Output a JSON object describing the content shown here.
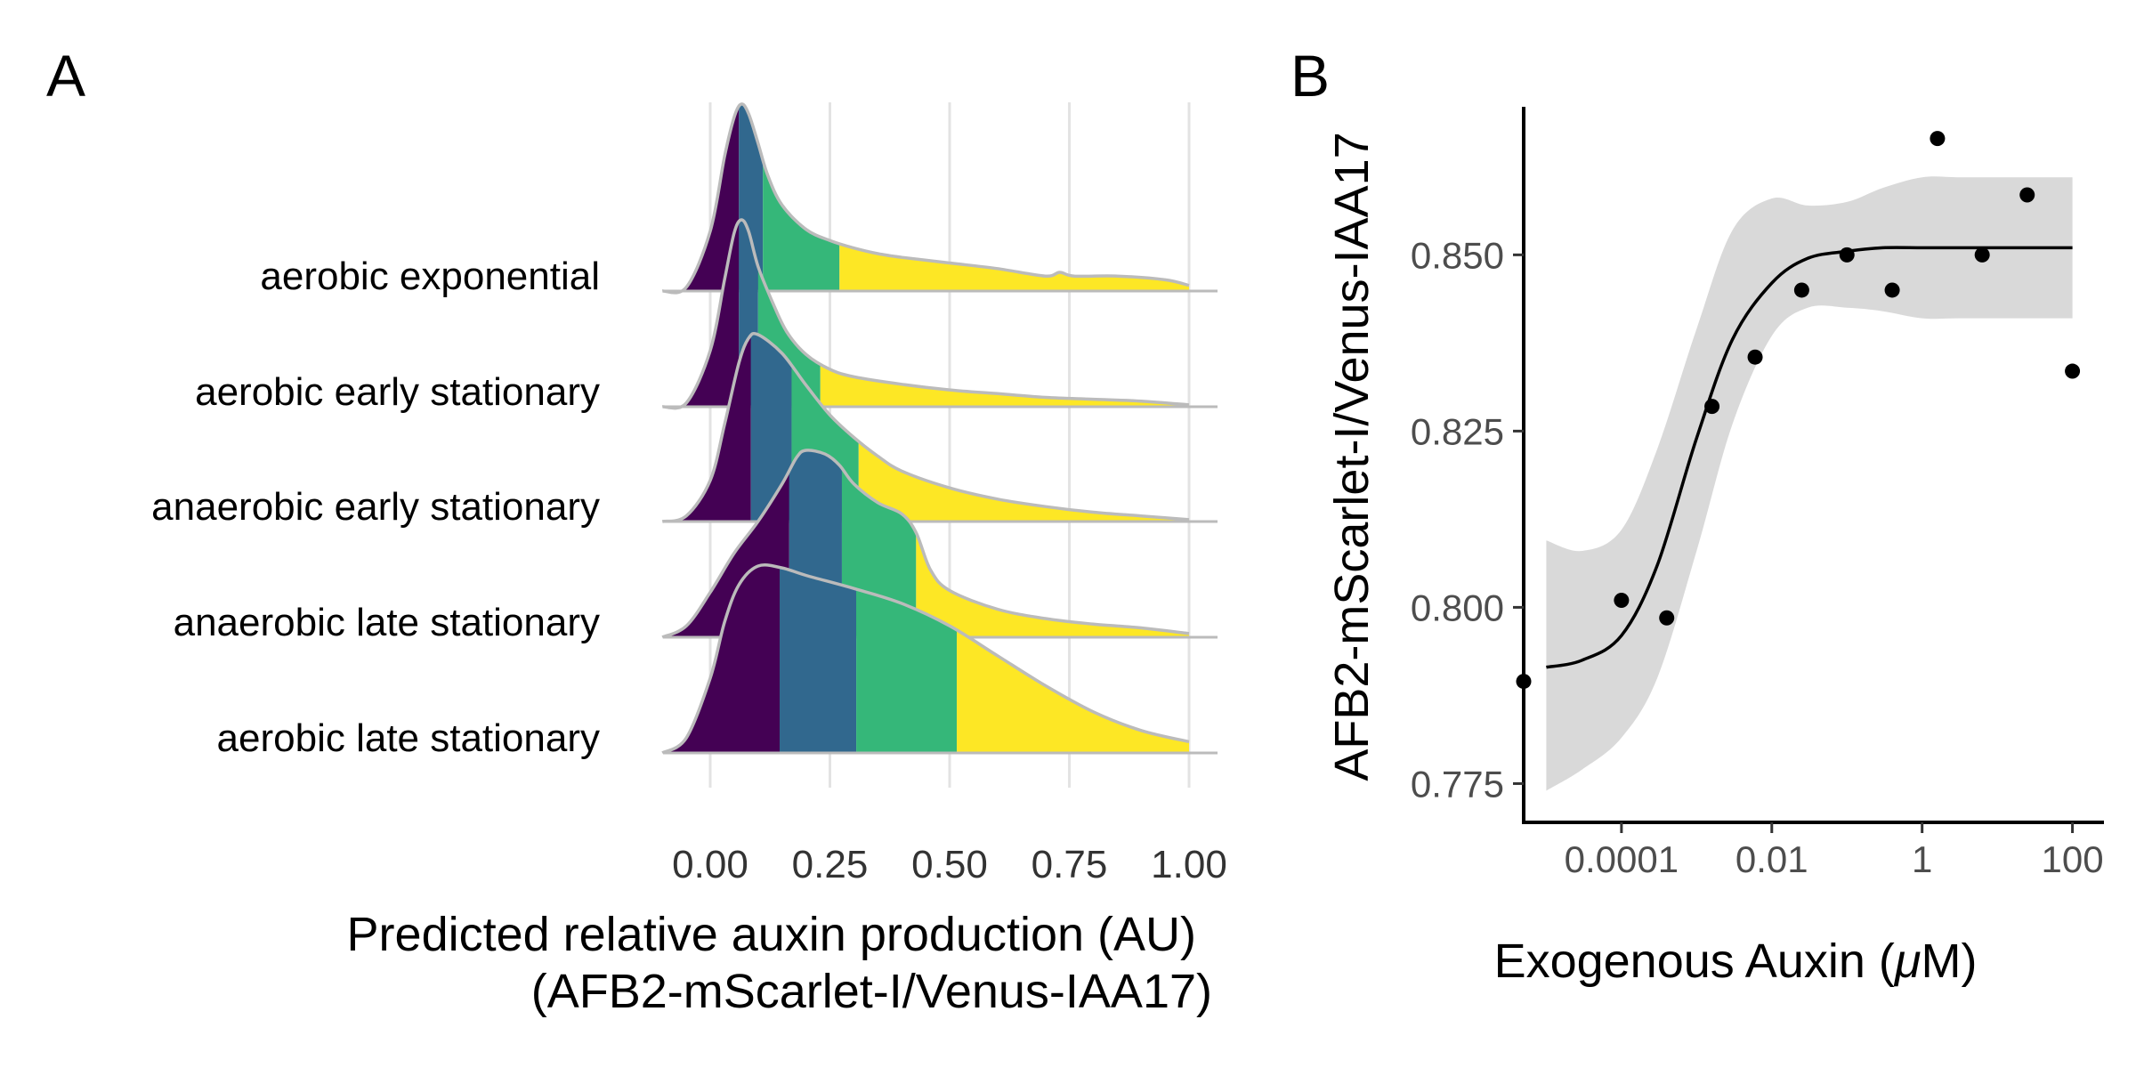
{
  "panels": {
    "a_label": "A",
    "b_label": "B"
  },
  "chart_data": [
    {
      "type": "ridgeline",
      "panel": "A",
      "xlabel_line1": "Predicted relative auxin production (AU)",
      "xlabel_line2": "(AFB2-mScarlet-I/Venus-IAA17)",
      "xlim": [
        -0.1,
        1.05
      ],
      "x_ticks": [
        0.0,
        0.25,
        0.5,
        0.75,
        1.0
      ],
      "x_tick_labels": [
        "0.00",
        "0.25",
        "0.50",
        "0.75",
        "1.00"
      ],
      "grid": "vertical major",
      "quantile_colors": [
        "#440154",
        "#31688E",
        "#35B779",
        "#FDE725"
      ],
      "outline_color": "#BBBBBB",
      "series": [
        {
          "name": "aerobic exponential",
          "quantiles": [
            0.06,
            0.11,
            0.27
          ],
          "density_x": [
            -0.1,
            -0.05,
            0.0,
            0.03,
            0.05,
            0.065,
            0.08,
            0.1,
            0.12,
            0.15,
            0.2,
            0.25,
            0.3,
            0.35,
            0.4,
            0.5,
            0.6,
            0.7,
            0.73,
            0.76,
            0.85,
            0.95,
            1.0
          ],
          "density_y": [
            0.0,
            0.02,
            0.32,
            0.72,
            0.93,
            1.0,
            0.95,
            0.79,
            0.62,
            0.46,
            0.33,
            0.27,
            0.23,
            0.2,
            0.18,
            0.15,
            0.12,
            0.08,
            0.1,
            0.08,
            0.08,
            0.06,
            0.03
          ]
        },
        {
          "name": "aerobic early stationary",
          "quantiles": [
            0.06,
            0.1,
            0.23
          ],
          "density_x": [
            -0.1,
            -0.05,
            0.0,
            0.03,
            0.05,
            0.065,
            0.08,
            0.1,
            0.13,
            0.16,
            0.2,
            0.25,
            0.3,
            0.4,
            0.5,
            0.6,
            0.7,
            0.8,
            0.9,
            1.0
          ],
          "density_y": [
            0.0,
            0.02,
            0.3,
            0.68,
            0.93,
            1.0,
            0.94,
            0.75,
            0.56,
            0.4,
            0.28,
            0.2,
            0.16,
            0.12,
            0.09,
            0.07,
            0.05,
            0.04,
            0.03,
            0.01
          ]
        },
        {
          "name": "anaerobic early stationary",
          "quantiles": [
            0.085,
            0.17,
            0.31
          ],
          "density_x": [
            -0.1,
            -0.05,
            0.0,
            0.03,
            0.06,
            0.08,
            0.1,
            0.15,
            0.2,
            0.25,
            0.3,
            0.35,
            0.4,
            0.5,
            0.6,
            0.7,
            0.8,
            0.9,
            1.0
          ],
          "density_y": [
            0.0,
            0.03,
            0.22,
            0.52,
            0.85,
            0.98,
            1.0,
            0.9,
            0.73,
            0.57,
            0.45,
            0.35,
            0.27,
            0.18,
            0.12,
            0.08,
            0.05,
            0.03,
            0.01
          ]
        },
        {
          "name": "anaerobic late stationary",
          "quantiles": [
            0.165,
            0.275,
            0.43
          ],
          "density_x": [
            -0.1,
            -0.05,
            0.0,
            0.05,
            0.1,
            0.15,
            0.18,
            0.2,
            0.24,
            0.27,
            0.3,
            0.35,
            0.4,
            0.43,
            0.46,
            0.5,
            0.6,
            0.7,
            0.8,
            0.9,
            1.0
          ],
          "density_y": [
            0.0,
            0.06,
            0.24,
            0.45,
            0.62,
            0.82,
            0.96,
            1.0,
            0.98,
            0.92,
            0.82,
            0.72,
            0.66,
            0.56,
            0.36,
            0.25,
            0.15,
            0.1,
            0.07,
            0.05,
            0.02
          ]
        },
        {
          "name": "aerobic late stationary",
          "quantiles": [
            0.145,
            0.305,
            0.515
          ],
          "density_x": [
            -0.1,
            -0.05,
            0.0,
            0.03,
            0.06,
            0.1,
            0.15,
            0.2,
            0.3,
            0.4,
            0.5,
            0.6,
            0.7,
            0.8,
            0.9,
            1.0
          ],
          "density_y": [
            0.0,
            0.08,
            0.4,
            0.7,
            0.9,
            1.0,
            0.99,
            0.95,
            0.88,
            0.8,
            0.68,
            0.52,
            0.36,
            0.22,
            0.12,
            0.06
          ]
        }
      ]
    },
    {
      "type": "scatter",
      "panel": "B",
      "xlabel_prefix": "Exogenous Auxin (",
      "xlabel_mu": "μ",
      "xlabel_suffix": "M)",
      "ylabel": "AFB2-mScarlet-I/Venus-IAA17",
      "x_scale": "log10",
      "xlim": [
        5e-06,
        200
      ],
      "ylim": [
        0.7695,
        0.871
      ],
      "x_ticks": [
        0.0001,
        0.01,
        1,
        100
      ],
      "x_tick_labels": [
        "0.0001",
        "0.01",
        "1",
        "100"
      ],
      "y_ticks": [
        0.775,
        0.8,
        0.825,
        0.85
      ],
      "y_tick_labels": [
        "0.775",
        "0.800",
        "0.825",
        "0.850"
      ],
      "points": {
        "x": [
          5e-06,
          0.0001,
          0.0004,
          0.0016,
          0.006,
          0.025,
          0.1,
          0.4,
          1.6,
          6.3,
          25,
          100
        ],
        "y": [
          0.7895,
          0.801,
          0.7985,
          0.8285,
          0.8355,
          0.845,
          0.85,
          0.845,
          0.8665,
          0.85,
          0.8585,
          0.8335
        ]
      },
      "fit": {
        "x": [
          1e-05,
          3e-05,
          0.0001,
          0.0003,
          0.001,
          0.003,
          0.01,
          0.03,
          0.1,
          0.3,
          1,
          3,
          10,
          30,
          100
        ],
        "y": [
          0.7915,
          0.7925,
          0.796,
          0.806,
          0.824,
          0.838,
          0.846,
          0.8495,
          0.8505,
          0.851,
          0.851,
          0.851,
          0.851,
          0.851,
          0.851
        ],
        "ci_lower": [
          0.774,
          0.777,
          0.7815,
          0.79,
          0.808,
          0.826,
          0.8385,
          0.8425,
          0.8425,
          0.842,
          0.841,
          0.841,
          0.841,
          0.841,
          0.841
        ],
        "ci_upper": [
          0.8095,
          0.808,
          0.811,
          0.8225,
          0.8395,
          0.8535,
          0.858,
          0.857,
          0.8575,
          0.8595,
          0.861,
          0.861,
          0.861,
          0.861,
          0.861
        ]
      },
      "fill_color": "#D9D9D9",
      "line_color": "#000000"
    }
  ]
}
